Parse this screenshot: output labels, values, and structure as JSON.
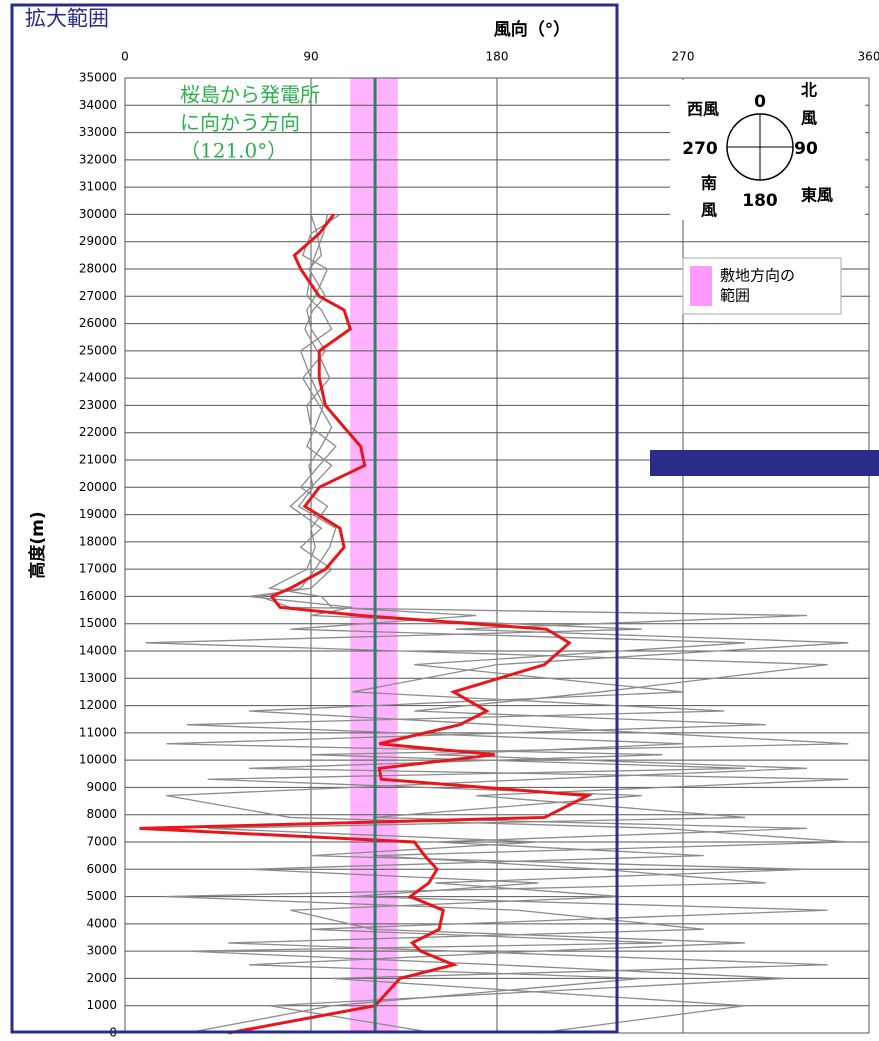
{
  "chart_data": {
    "type": "line",
    "title": "拡大範囲",
    "x_axis_title": "風向（°）",
    "y_axis_title": "高度(m)",
    "xlim": [
      0,
      360
    ],
    "xticks": [
      0,
      90,
      180,
      270,
      360
    ],
    "ylim": [
      0,
      35000
    ],
    "yticks": [
      0,
      1000,
      2000,
      3000,
      4000,
      5000,
      6000,
      7000,
      8000,
      9000,
      10000,
      11000,
      12000,
      13000,
      14000,
      15000,
      16000,
      17000,
      18000,
      19000,
      20000,
      21000,
      22000,
      23000,
      24000,
      25000,
      26000,
      27000,
      28000,
      29000,
      30000,
      31000,
      32000,
      33000,
      34000,
      35000
    ],
    "grid": true,
    "y": [
      0,
      1000,
      2000,
      2500,
      3000,
      3300,
      3800,
      4500,
      5000,
      5500,
      6000,
      6500,
      7000,
      7500,
      7900,
      8700,
      9300,
      9700,
      10200,
      10600,
      11300,
      11800,
      12500,
      13500,
      14300,
      14800,
      15300,
      15600,
      16000,
      16300,
      17000,
      17800,
      18500,
      19300,
      20000,
      20800,
      21500,
      22200,
      23000,
      24000,
      25000,
      25800,
      26500,
      27000,
      28000,
      28500,
      29300,
      30000
    ],
    "series": [
      {
        "color": "#8c8c8c",
        "values": [
          30,
          100,
          250,
          60,
          200,
          300,
          120,
          80,
          240,
          150,
          330,
          90,
          200,
          40,
          300,
          170,
          350,
          60,
          260,
          20,
          310,
          140,
          230,
          340,
          10,
          250,
          90,
          110,
          60,
          90,
          100,
          85,
          95,
          80,
          90,
          100,
          88,
          92,
          96,
          90,
          85,
          100,
          95,
          88,
          90,
          92,
          96,
          98
        ]
      },
      {
        "color": "#8c8c8c",
        "values": [
          150,
          70,
          320,
          180,
          30,
          260,
          90,
          340,
          110,
          200,
          60,
          280,
          150,
          330,
          120,
          250,
          40,
          300,
          90,
          350,
          180,
          60,
          270,
          140,
          300,
          80,
          170,
          100,
          95,
          70,
          88,
          92,
          90,
          98,
          85,
          94,
          102,
          90,
          88,
          99,
          93,
          87,
          91,
          97,
          89,
          95,
          93,
          90
        ]
      },
      {
        "color": "#8c8c8c",
        "values": [
          200,
          300,
          100,
          340,
          160,
          50,
          280,
          190,
          20,
          310,
          230,
          120,
          350,
          260,
          80,
          20,
          200,
          330,
          150,
          270,
          30,
          290,
          110,
          180,
          350,
          160,
          330,
          80,
          65,
          85,
          92,
          99,
          102,
          84,
          91,
          89,
          95,
          100,
          94,
          86,
          97,
          90,
          88,
          92,
          98,
          86,
          90,
          104
        ]
      },
      {
        "color": "#e8161b",
        "values": [
          50,
          121,
          133,
          159,
          143,
          139,
          152,
          154,
          138,
          147,
          151,
          145,
          140,
          7,
          203,
          224,
          124,
          123,
          179,
          123,
          162,
          175,
          159,
          203,
          215,
          204,
          114,
          75,
          71,
          80,
          97,
          106,
          104,
          87,
          94,
          116,
          114,
          106,
          97,
          94,
          94,
          109,
          106,
          94,
          85,
          82,
          94,
          101
        ]
      }
    ],
    "site_band": {
      "range": [
        109,
        132
      ],
      "color": "#ff99ff"
    },
    "reference_line": {
      "value": 121.0,
      "color": "#2e7d6b"
    },
    "annotation": [
      "桜島から発電所",
      "に向かう方向",
      "（121.0°）"
    ],
    "legend": [
      "敷地方向の",
      "範囲"
    ],
    "compass": {
      "degrees": [
        "0",
        "90",
        "180",
        "270"
      ],
      "winds": [
        "西風",
        "北",
        "風",
        "東風",
        "南",
        "風"
      ]
    }
  }
}
